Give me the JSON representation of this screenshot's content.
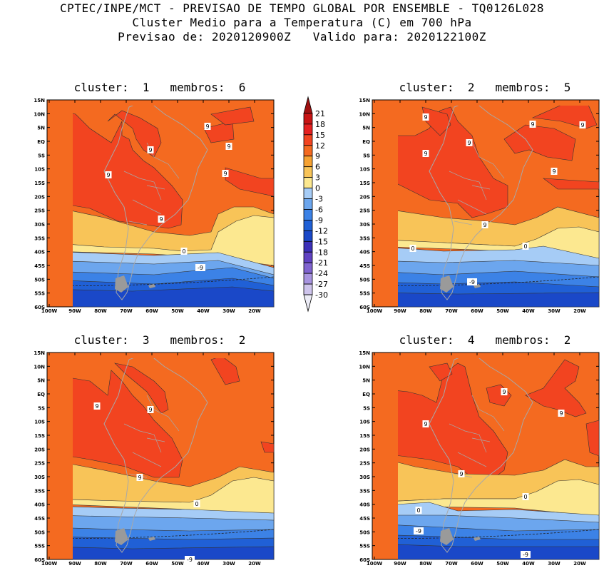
{
  "header": {
    "line1": "CPTEC/INPE/MCT - PREVISAO DE TEMPO GLOBAL POR ENSEMBLE - TQ0126L028",
    "line2": "Cluster Medio para a Temperatura (C) em 700 hPa",
    "line3": "Previsao de: 2020120900Z   Valido para: 2020122100Z"
  },
  "axes": {
    "lat_labels": [
      "15N",
      "10N",
      "5N",
      "EQ",
      "5S",
      "10S",
      "15S",
      "20S",
      "25S",
      "30S",
      "35S",
      "40S",
      "45S",
      "50S",
      "55S",
      "60S"
    ],
    "lon_labels": [
      "100W",
      "90W",
      "80W",
      "70W",
      "60W",
      "50W",
      "40W",
      "30W",
      "20W"
    ]
  },
  "colorbar": {
    "labels": [
      "21",
      "18",
      "15",
      "12",
      "9",
      "6",
      "3",
      "0",
      "-3",
      "-6",
      "-9",
      "-12",
      "-15",
      "-18",
      "-21",
      "-24",
      "-27",
      "-30"
    ],
    "colors": [
      "#a01010",
      "#c81414",
      "#e52020",
      "#f24420",
      "#f46a20",
      "#f6a232",
      "#f8c458",
      "#fce890",
      "#a6ccf6",
      "#6ca6ee",
      "#3c82e6",
      "#2060d6",
      "#1a48c8",
      "#3c30b8",
      "#6042c2",
      "#8064d0",
      "#a894e0",
      "#cec4ec",
      "#ececf6"
    ],
    "extend": "both"
  },
  "panels": [
    {
      "label": "cluster:  1   membros:  6",
      "contour_labels": [
        {
          "t": "9"
        },
        {
          "t": "9"
        },
        {
          "t": "9"
        },
        {
          "t": "9"
        },
        {
          "t": "9"
        },
        {
          "t": "9"
        },
        {
          "t": "0"
        },
        {
          "t": "-9"
        }
      ]
    },
    {
      "label": "cluster:  2   membros:  5",
      "contour_labels": [
        {
          "t": "9"
        },
        {
          "t": "9"
        },
        {
          "t": "9"
        },
        {
          "t": "9"
        },
        {
          "t": "9"
        },
        {
          "t": "9"
        },
        {
          "t": "9"
        },
        {
          "t": "0"
        },
        {
          "t": "0"
        },
        {
          "t": "-9"
        }
      ]
    },
    {
      "label": "cluster:  3   membros:  2",
      "contour_labels": [
        {
          "t": "9"
        },
        {
          "t": "9"
        },
        {
          "t": "9"
        },
        {
          "t": "0"
        },
        {
          "t": "-9"
        }
      ]
    },
    {
      "label": "cluster:  4   membros:  2",
      "contour_labels": [
        {
          "t": "9"
        },
        {
          "t": "9"
        },
        {
          "t": "9"
        },
        {
          "t": "9"
        },
        {
          "t": "9"
        },
        {
          "t": "0"
        },
        {
          "t": "0"
        },
        {
          "t": "-9"
        },
        {
          "t": "-9"
        }
      ]
    }
  ]
}
